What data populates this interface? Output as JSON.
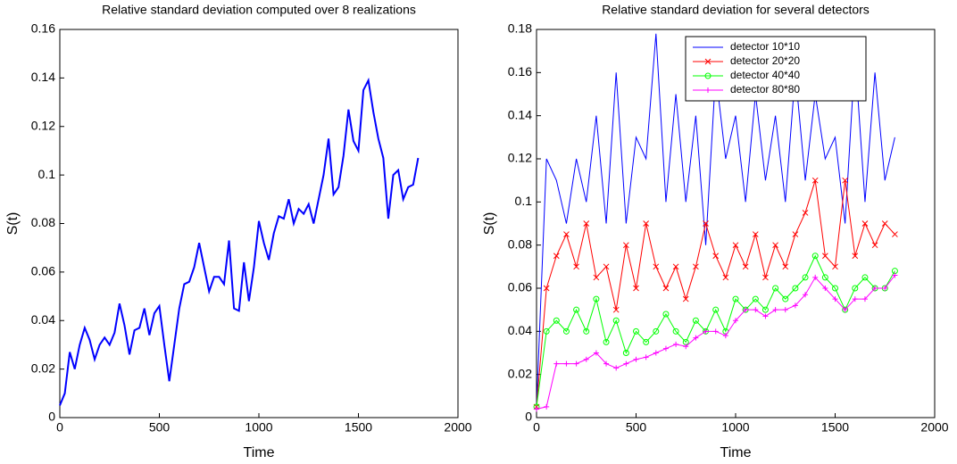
{
  "chart_data": [
    {
      "type": "line",
      "title": "Relative standard deviation computed over 8 realizations",
      "x_label": "Time",
      "y_label": "S(t)",
      "color": "#0000ff",
      "x": [
        0,
        25,
        50,
        75,
        100,
        125,
        150,
        175,
        200,
        225,
        250,
        275,
        300,
        325,
        350,
        375,
        400,
        425,
        450,
        475,
        500,
        525,
        550,
        575,
        600,
        625,
        650,
        675,
        700,
        725,
        750,
        775,
        800,
        825,
        850,
        875,
        900,
        925,
        950,
        975,
        1000,
        1025,
        1050,
        1075,
        1100,
        1125,
        1150,
        1175,
        1200,
        1225,
        1250,
        1275,
        1300,
        1325,
        1350,
        1375,
        1400,
        1425,
        1450,
        1475,
        1500,
        1525,
        1550,
        1575,
        1600,
        1625,
        1650,
        1675,
        1700,
        1725,
        1750,
        1775,
        1800
      ],
      "values": [
        0.005,
        0.01,
        0.027,
        0.02,
        0.03,
        0.037,
        0.032,
        0.024,
        0.03,
        0.033,
        0.03,
        0.035,
        0.047,
        0.038,
        0.026,
        0.036,
        0.037,
        0.045,
        0.034,
        0.043,
        0.046,
        0.03,
        0.015,
        0.03,
        0.045,
        0.055,
        0.056,
        0.062,
        0.072,
        0.062,
        0.052,
        0.058,
        0.058,
        0.055,
        0.073,
        0.045,
        0.044,
        0.064,
        0.048,
        0.062,
        0.081,
        0.072,
        0.065,
        0.076,
        0.083,
        0.082,
        0.09,
        0.08,
        0.086,
        0.084,
        0.088,
        0.08,
        0.09,
        0.1,
        0.115,
        0.092,
        0.095,
        0.108,
        0.127,
        0.114,
        0.11,
        0.135,
        0.139,
        0.126,
        0.115,
        0.107,
        0.082,
        0.1,
        0.102,
        0.09,
        0.095,
        0.096,
        0.107
      ],
      "xlim": [
        0,
        2000
      ],
      "xticks": [
        0,
        500,
        1000,
        1500,
        2000
      ],
      "ylim": [
        0,
        0.16
      ],
      "yticks": [
        0,
        0.02,
        0.04,
        0.06,
        0.08,
        0.1,
        0.12,
        0.14,
        0.16
      ]
    },
    {
      "type": "line",
      "title": "Relative standard deviation for several detectors",
      "x_label": "Time",
      "y_label": "S(t)",
      "legend": "top",
      "x": [
        0,
        50,
        100,
        150,
        200,
        250,
        300,
        350,
        400,
        450,
        500,
        550,
        600,
        650,
        700,
        750,
        800,
        850,
        900,
        950,
        1000,
        1050,
        1100,
        1150,
        1200,
        1250,
        1300,
        1350,
        1400,
        1450,
        1500,
        1550,
        1600,
        1650,
        1700,
        1750,
        1800
      ],
      "series": [
        {
          "name": "detector 10*10",
          "color": "#0000ff",
          "marker": "none",
          "values": [
            0.005,
            0.12,
            0.11,
            0.09,
            0.12,
            0.1,
            0.14,
            0.09,
            0.16,
            0.09,
            0.13,
            0.12,
            0.178,
            0.1,
            0.15,
            0.1,
            0.14,
            0.08,
            0.16,
            0.12,
            0.14,
            0.1,
            0.15,
            0.11,
            0.14,
            0.1,
            0.16,
            0.11,
            0.15,
            0.12,
            0.13,
            0.09,
            0.168,
            0.1,
            0.16,
            0.11,
            0.13
          ]
        },
        {
          "name": "detector 20*20",
          "color": "#ff0000",
          "marker": "x",
          "values": [
            0.005,
            0.06,
            0.075,
            0.085,
            0.07,
            0.09,
            0.065,
            0.07,
            0.05,
            0.08,
            0.06,
            0.09,
            0.07,
            0.06,
            0.07,
            0.055,
            0.07,
            0.09,
            0.075,
            0.065,
            0.08,
            0.07,
            0.085,
            0.065,
            0.08,
            0.07,
            0.085,
            0.095,
            0.11,
            0.075,
            0.07,
            0.11,
            0.075,
            0.09,
            0.08,
            0.09,
            0.085
          ]
        },
        {
          "name": "detector 40*40",
          "color": "#00ff00",
          "marker": "o",
          "values": [
            0.005,
            0.04,
            0.045,
            0.04,
            0.05,
            0.04,
            0.055,
            0.035,
            0.045,
            0.03,
            0.04,
            0.035,
            0.04,
            0.048,
            0.04,
            0.035,
            0.045,
            0.04,
            0.05,
            0.04,
            0.055,
            0.05,
            0.055,
            0.05,
            0.06,
            0.055,
            0.06,
            0.065,
            0.075,
            0.065,
            0.06,
            0.05,
            0.06,
            0.065,
            0.06,
            0.06,
            0.068
          ]
        },
        {
          "name": "detector 80*80",
          "color": "#ff00ff",
          "marker": "+",
          "values": [
            0.004,
            0.005,
            0.025,
            0.025,
            0.025,
            0.027,
            0.03,
            0.025,
            0.023,
            0.025,
            0.027,
            0.028,
            0.03,
            0.032,
            0.034,
            0.033,
            0.037,
            0.04,
            0.04,
            0.038,
            0.045,
            0.05,
            0.05,
            0.047,
            0.05,
            0.05,
            0.052,
            0.057,
            0.065,
            0.06,
            0.055,
            0.05,
            0.055,
            0.055,
            0.06,
            0.06,
            0.066
          ]
        }
      ],
      "xlim": [
        0,
        2000
      ],
      "xticks": [
        0,
        500,
        1000,
        1500,
        2000
      ],
      "ylim": [
        0,
        0.18
      ],
      "yticks": [
        0,
        0.02,
        0.04,
        0.06,
        0.08,
        0.1,
        0.12,
        0.14,
        0.16,
        0.18
      ]
    }
  ]
}
